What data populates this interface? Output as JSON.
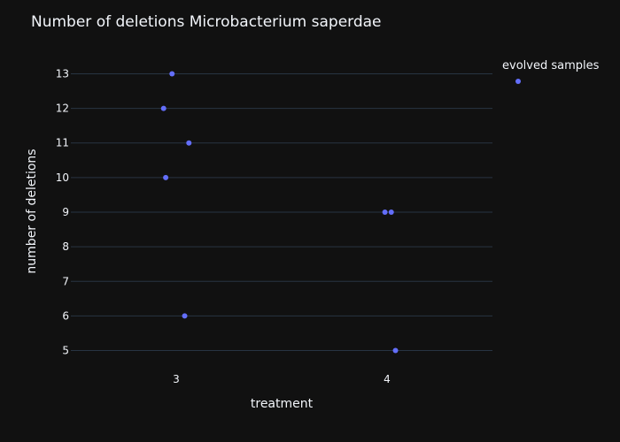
{
  "chart_data": {
    "type": "scatter",
    "title": "Number of deletions Microbacterium saperdae",
    "xlabel": "treatment",
    "ylabel": "number of deletions",
    "x_ticks": [
      "3",
      "4"
    ],
    "y_ticks": [
      "5",
      "6",
      "7",
      "8",
      "9",
      "10",
      "11",
      "12",
      "13"
    ],
    "ylim": [
      4.4,
      13.6
    ],
    "grid": "horizontal",
    "legend_position": "top-right",
    "marker_color": "#636efa",
    "series": [
      {
        "name": "evolved samples",
        "points": [
          {
            "x": 3,
            "y": 13
          },
          {
            "x": 3,
            "y": 12
          },
          {
            "x": 3,
            "y": 11
          },
          {
            "x": 3,
            "y": 10
          },
          {
            "x": 3,
            "y": 6
          },
          {
            "x": 4,
            "y": 9
          },
          {
            "x": 4,
            "y": 9
          },
          {
            "x": 4,
            "y": 5
          }
        ]
      }
    ]
  }
}
